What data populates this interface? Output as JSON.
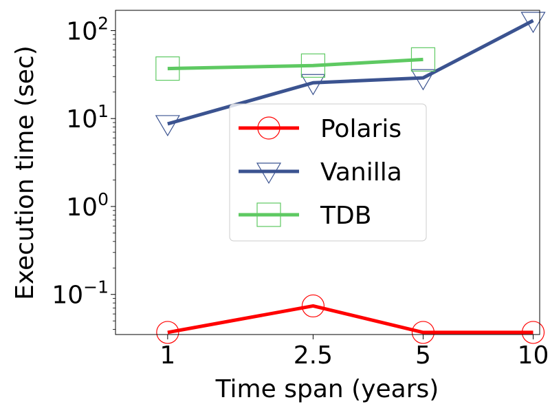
{
  "chart_data": {
    "type": "line",
    "title": "",
    "xlabel": "Time span (years)",
    "ylabel": "Execution time (sec)",
    "x": [
      1,
      2.5,
      5,
      10
    ],
    "x_ticks": [
      "1",
      "2.5",
      "5",
      "10"
    ],
    "xlim": [
      0.72,
      10.42
    ],
    "y_scale": "log",
    "ylim": [
      0.035,
      170
    ],
    "y_ticks": [
      {
        "value": 0.1,
        "base": "10",
        "exp": "−1"
      },
      {
        "value": 1,
        "base": "10",
        "exp": "0"
      },
      {
        "value": 10,
        "base": "10",
        "exp": "1"
      },
      {
        "value": 100,
        "base": "10",
        "exp": "2"
      }
    ],
    "grid": false,
    "legend_position": "center",
    "series": [
      {
        "name": "Polaris",
        "color": "#ff0000",
        "marker": "circle",
        "x": [
          1,
          2.5,
          5,
          10
        ],
        "values": [
          0.037,
          0.074,
          0.037,
          0.037
        ]
      },
      {
        "name": "Vanilla",
        "color": "#3b5390",
        "marker": "triangle-down",
        "x": [
          1,
          2.5,
          5,
          10
        ],
        "values": [
          8.7,
          25.5,
          29,
          130
        ]
      },
      {
        "name": "TDB",
        "color": "#5ec962",
        "marker": "square",
        "x": [
          1,
          2.5,
          5
        ],
        "values": [
          37,
          40,
          47
        ]
      }
    ]
  }
}
